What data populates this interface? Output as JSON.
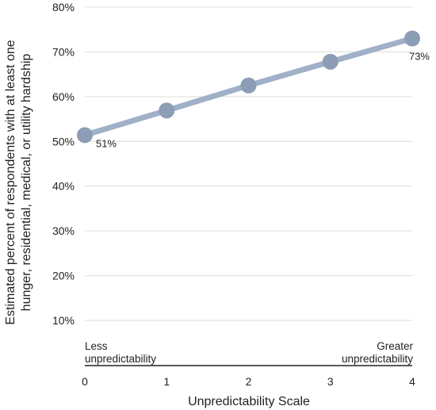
{
  "chart_data": {
    "type": "line",
    "x": [
      0,
      1,
      2,
      3,
      4
    ],
    "x_ticks": [
      "0",
      "1",
      "2",
      "3",
      "4"
    ],
    "y_ticks": [
      "10%",
      "20%",
      "30%",
      "40%",
      "50%",
      "60%",
      "70%",
      "80%"
    ],
    "series": [
      {
        "values": [
          51.4,
          56.9,
          62.5,
          67.8,
          73.0
        ]
      }
    ],
    "data_labels": [
      {
        "index": 0,
        "text": "51%"
      },
      {
        "index": 4,
        "text": "73%"
      }
    ],
    "xlabel": "Unpredictability Scale",
    "ylabel_lines": [
      "Estimated percent of respondents with at least one",
      "hunger, residential, medical, or utility hardship"
    ],
    "xlim": [
      0,
      4
    ],
    "ylim": [
      10,
      80
    ],
    "grid": "horizontal",
    "annotations": {
      "left": [
        "Less",
        "unpredictability"
      ],
      "right": [
        "Greater",
        "unpredictability"
      ]
    },
    "colors": {
      "line": "#9fb0c7",
      "marker": "#8c9db5",
      "grid": "#dcdcdc",
      "axis": "#222222"
    }
  }
}
